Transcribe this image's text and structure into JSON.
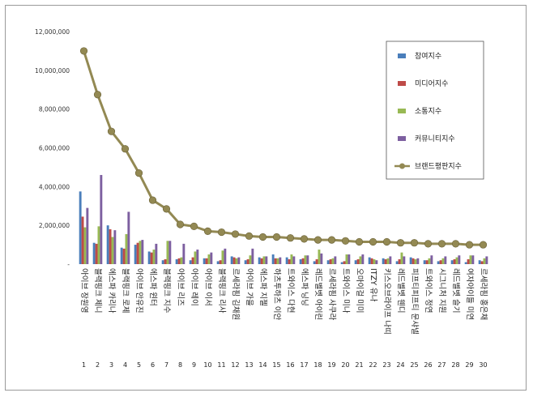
{
  "chart_data": {
    "type": "bar",
    "title": "",
    "xlabel": "",
    "ylabel": "",
    "ylim": [
      0,
      12000000
    ],
    "yticks": [
      "-",
      "2,000,000",
      "4,000,000",
      "6,000,000",
      "8,000,000",
      "10,000,000",
      "12,000,000"
    ],
    "ytick_values": [
      0,
      2000000,
      4000000,
      6000000,
      8000000,
      10000000,
      12000000
    ],
    "grid": false,
    "legend_position": "top-right",
    "ranks": [
      "1",
      "2",
      "3",
      "4",
      "5",
      "6",
      "7",
      "8",
      "9",
      "10",
      "11",
      "12",
      "13",
      "14",
      "15",
      "16",
      "17",
      "18",
      "19",
      "20",
      "21",
      "22",
      "23",
      "24",
      "25",
      "26",
      "27",
      "28",
      "29",
      "30"
    ],
    "categories": [
      "아이브 장원영",
      "블랙핑크 제니",
      "에스파 카리나",
      "블랙핑크 로제",
      "아이브 안유진",
      "에스파 윈터",
      "블랙핑크 지수",
      "아이브 리즈",
      "아이브 레이",
      "아이브 이서",
      "블랙핑크 리사",
      "르세라핌 김채원",
      "아이브 가을",
      "에스파 지젤",
      "하츠투하츠 이안",
      "트와이스 다현",
      "에스파 닝닝",
      "레드벨벳 아이린",
      "르세라핌 사쿠라",
      "트와이스 미나",
      "오마이걸 미미",
      "ITZY 유나",
      "키스오브라이프 나띠",
      "레드벨벳 웬디",
      "피프티피프티 문샤넬",
      "트와이스 정연",
      "시그니처 지원",
      "레드벨벳 슬기",
      "여자아이들 미연",
      "르세라핌 홍은채"
    ],
    "series": [
      {
        "name": "참여지수",
        "color": "#4a7ebb",
        "values": [
          3750000,
          1100000,
          2000000,
          850000,
          1000000,
          650000,
          200000,
          250000,
          200000,
          300000,
          150000,
          400000,
          200000,
          350000,
          500000,
          350000,
          250000,
          150000,
          200000,
          100000,
          200000,
          350000,
          300000,
          150000,
          350000,
          200000,
          150000,
          200000,
          100000,
          200000
        ]
      },
      {
        "name": "미디어지수",
        "color": "#be4b48",
        "values": [
          2450000,
          1050000,
          1800000,
          800000,
          1100000,
          600000,
          250000,
          300000,
          350000,
          300000,
          200000,
          350000,
          250000,
          300000,
          300000,
          250000,
          300000,
          250000,
          250000,
          150000,
          250000,
          300000,
          250000,
          250000,
          300000,
          200000,
          200000,
          250000,
          250000,
          150000
        ]
      },
      {
        "name": "소통지수",
        "color": "#98b954",
        "values": [
          1900000,
          1950000,
          1400000,
          1550000,
          1200000,
          750000,
          1200000,
          350000,
          650000,
          500000,
          700000,
          300000,
          450000,
          400000,
          300000,
          500000,
          450000,
          750000,
          300000,
          500000,
          400000,
          250000,
          300000,
          600000,
          250000,
          300000,
          300000,
          350000,
          450000,
          300000
        ]
      },
      {
        "name": "커뮤니티지수",
        "color": "#7d5fa0",
        "values": [
          2900000,
          4600000,
          1750000,
          2700000,
          1250000,
          1050000,
          1200000,
          1050000,
          750000,
          600000,
          800000,
          350000,
          800000,
          400000,
          350000,
          400000,
          450000,
          550000,
          400000,
          500000,
          500000,
          200000,
          400000,
          400000,
          300000,
          450000,
          400000,
          450000,
          450000,
          400000
        ]
      }
    ],
    "line": {
      "name": "브랜드평판지수",
      "color": "#938953",
      "values": [
        11000000,
        8750000,
        6850000,
        5950000,
        4700000,
        3300000,
        2850000,
        2050000,
        1950000,
        1700000,
        1650000,
        1550000,
        1450000,
        1400000,
        1400000,
        1350000,
        1300000,
        1250000,
        1250000,
        1200000,
        1150000,
        1150000,
        1150000,
        1100000,
        1100000,
        1050000,
        1050000,
        1050000,
        1000000,
        1000000
      ]
    }
  }
}
